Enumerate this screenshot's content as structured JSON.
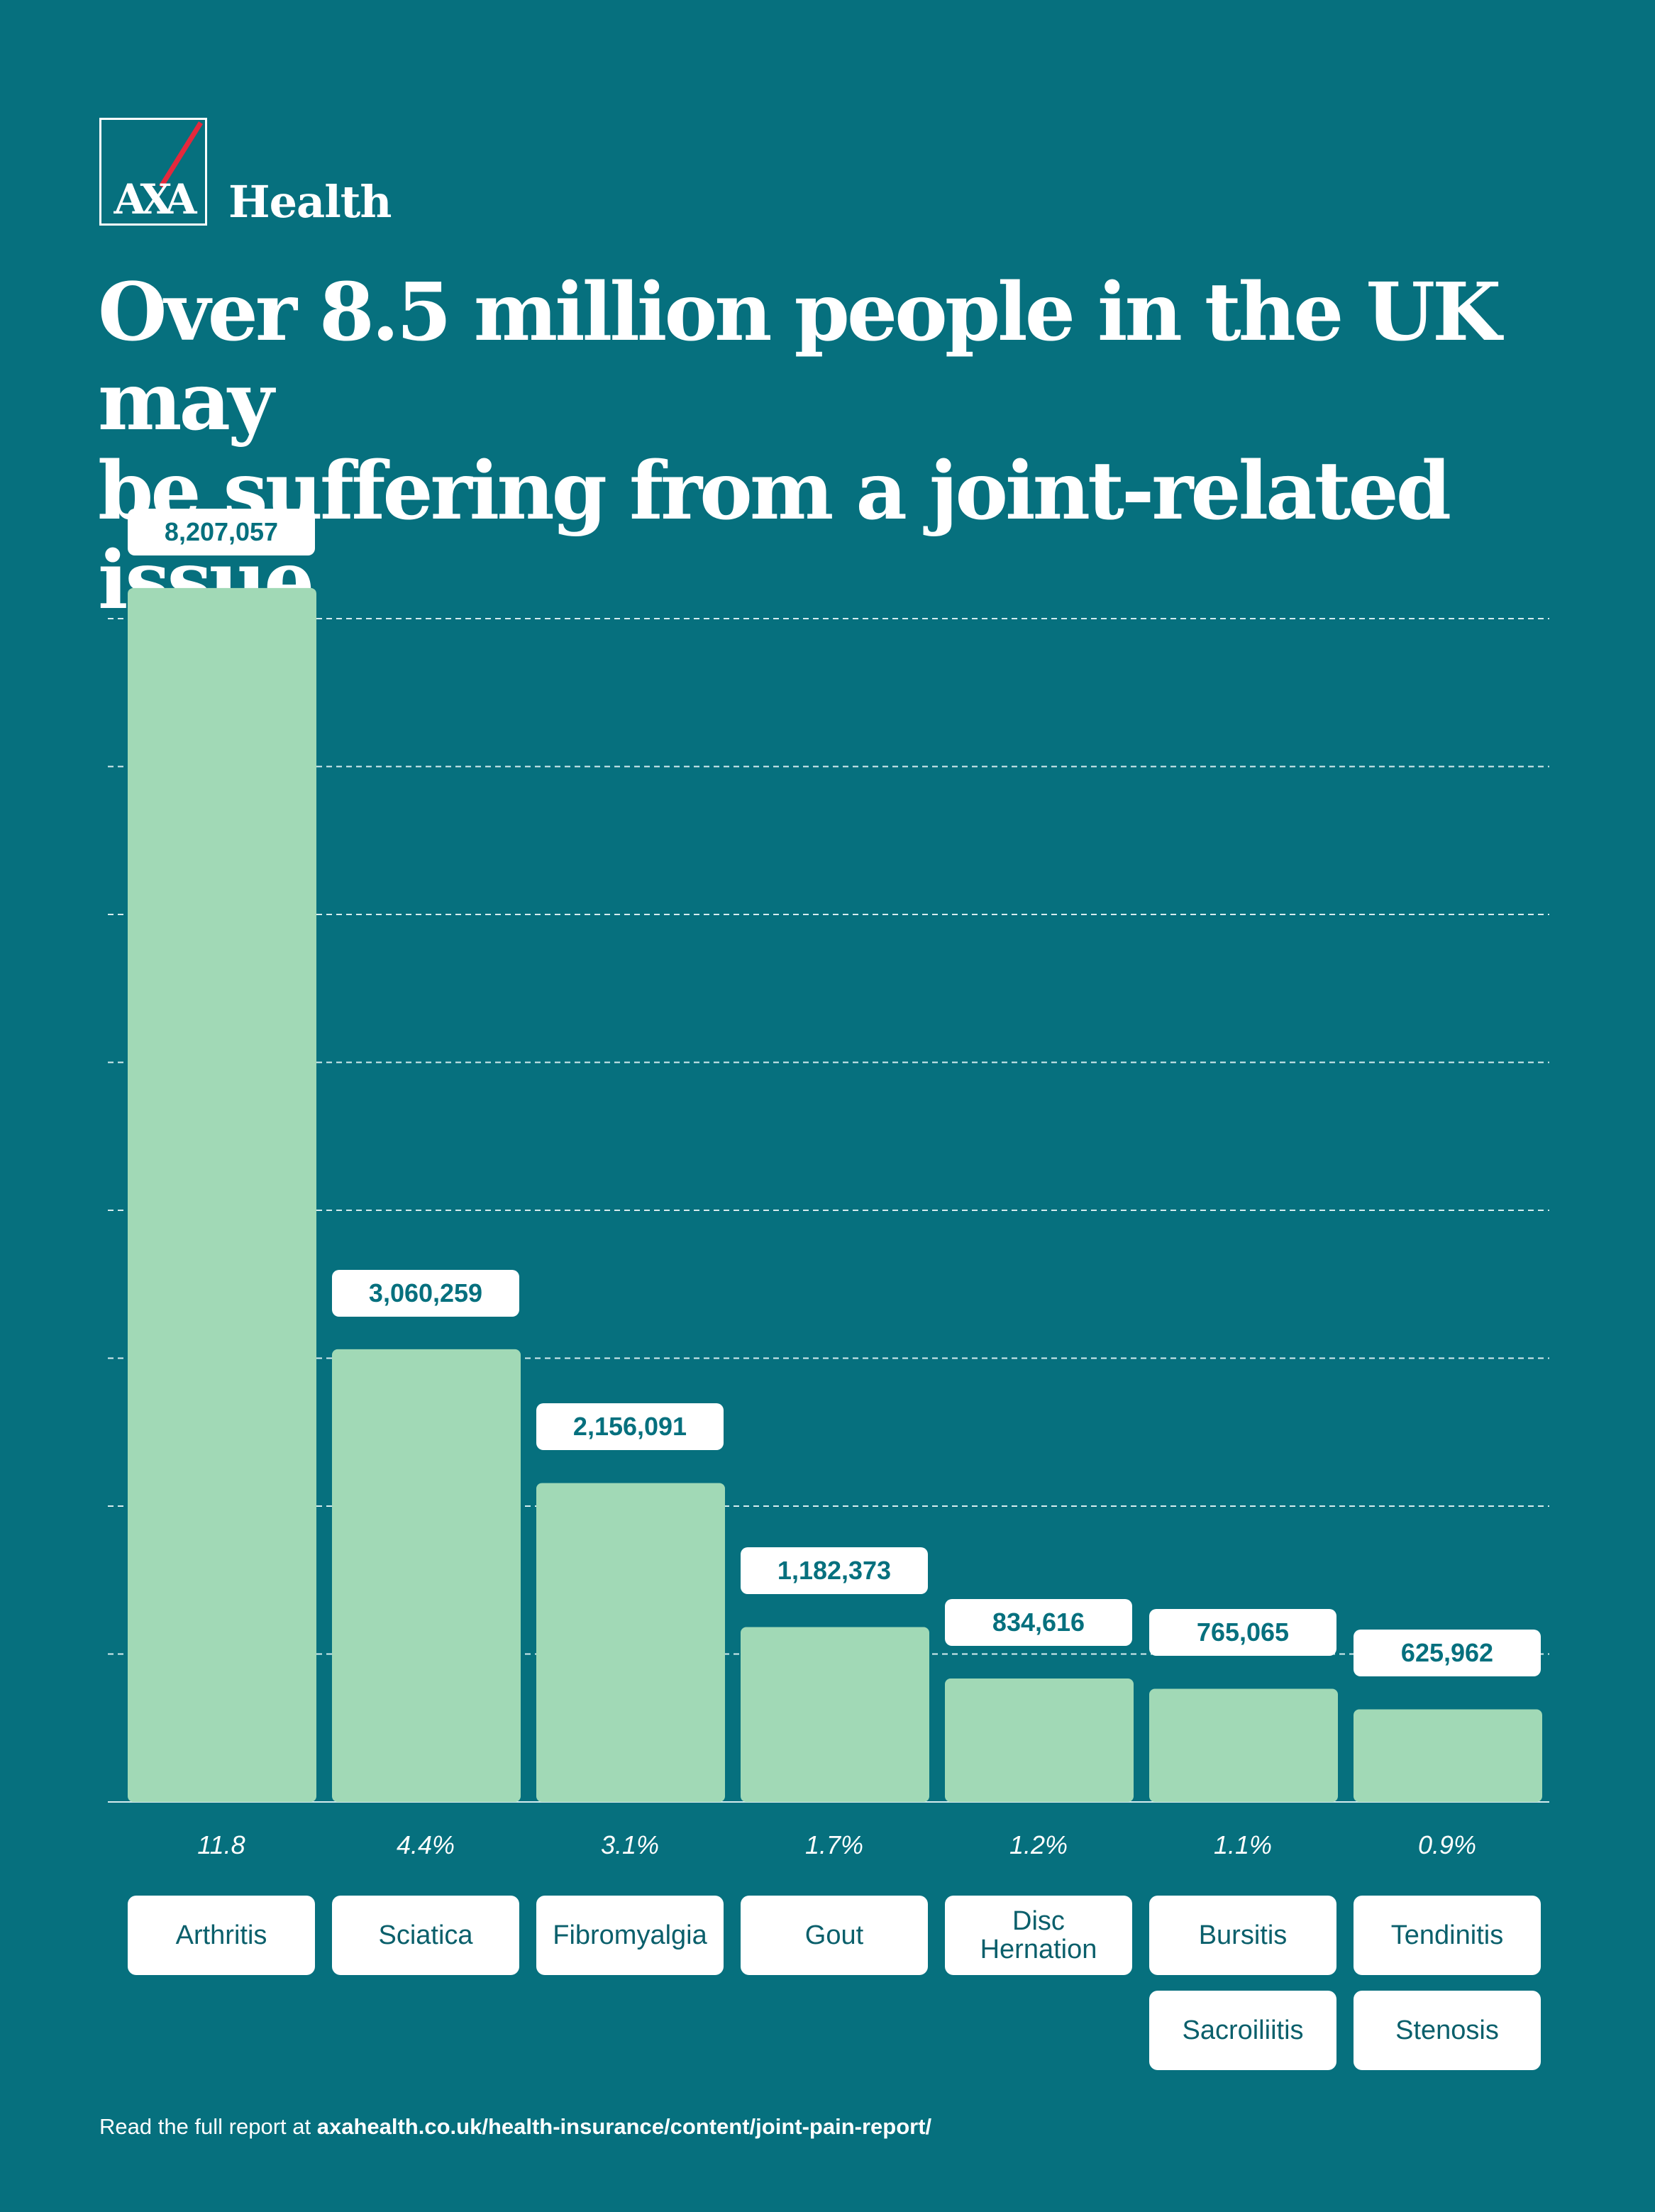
{
  "brand": {
    "logo_text": "AXA",
    "name": "Health",
    "colors": {
      "background": "#06707e",
      "bar": "#a1d9b6",
      "accent_red": "#e4283c",
      "label_text": "#06707e"
    }
  },
  "headline": {
    "line1": "Over 8.5 million people in the UK may",
    "line2": "be suffering from a joint-related issue"
  },
  "chart_data": {
    "type": "bar",
    "title": "Over 8.5 million people in the UK may be suffering from a joint-related issue",
    "categories": [
      "Arthritis",
      "Sciatica",
      "Fibromyalgia",
      "Gout",
      "Disc Hernation",
      "Bursitis",
      "Tendinitis"
    ],
    "extra_categories": [
      "Sacroiliitis",
      "Stenosis"
    ],
    "values": [
      8207057,
      3060259,
      2156091,
      1182373,
      834616,
      765065,
      625962
    ],
    "value_labels": [
      "8,207,057",
      "3,060,259",
      "2,156,091",
      "1,182,373",
      "834,616",
      "765,065",
      "625,962"
    ],
    "percent_labels": [
      "11.8",
      "4.4%",
      "3.1%",
      "1.7%",
      "1.2%",
      "1.1%",
      "0.9%"
    ],
    "category_labels": [
      [
        "Arthritis"
      ],
      [
        "Sciatica"
      ],
      [
        "Fibromyalgia"
      ],
      [
        "Gout"
      ],
      [
        "Disc",
        "Hernation"
      ],
      [
        "Bursitis",
        "Sacroiliitis"
      ],
      [
        "Tendinitis",
        "Stenosis"
      ]
    ],
    "ylim": [
      0,
      8000000
    ],
    "gridlines": 8,
    "xlabel": "",
    "ylabel": ""
  },
  "footer": {
    "prefix": "Read the full report at ",
    "link": "axahealth.co.uk/health-insurance/content/joint-pain-report/"
  }
}
